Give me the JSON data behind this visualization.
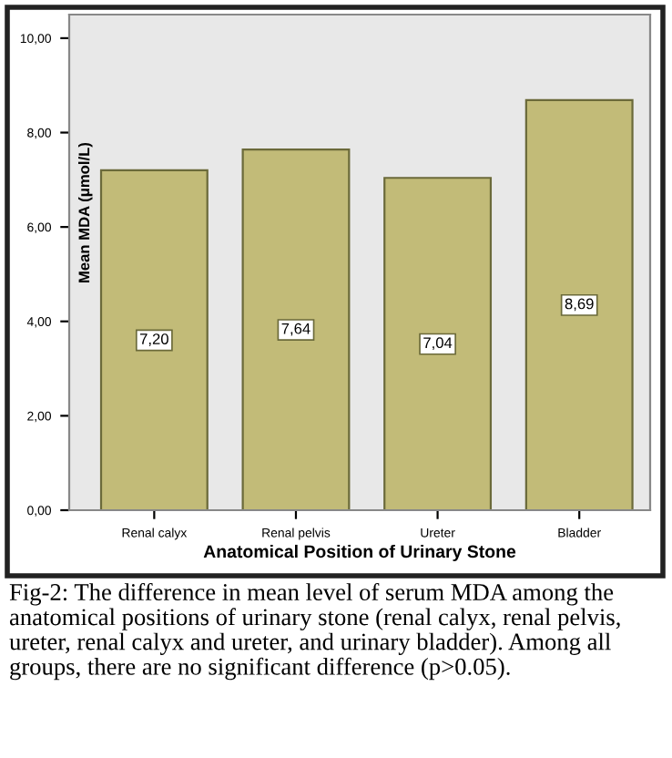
{
  "chart_data": {
    "type": "bar",
    "xlabel": "Anatomical Position of Urinary Stone",
    "ylabel": "Mean MDA (μmol/L)",
    "categories": [
      "Renal calyx",
      "Renal pelvis",
      "Ureter",
      "Bladder"
    ],
    "values": [
      7.2,
      7.64,
      7.04,
      8.69
    ],
    "value_labels": [
      "7,20",
      "7,64",
      "7,04",
      "8,69"
    ],
    "color": "#c2bb78",
    "ylim": [
      0,
      10.5
    ],
    "yticks": [
      {
        "value": 0,
        "label": "0,00"
      },
      {
        "value": 2,
        "label": "2,00"
      },
      {
        "value": 4,
        "label": "4,00"
      },
      {
        "value": 6,
        "label": "6,00"
      },
      {
        "value": 8,
        "label": "8,00"
      },
      {
        "value": 10,
        "label": "10,00"
      }
    ],
    "grid": false,
    "annotations": [
      "Fig-2: The difference in mean level of serum MDA among the anatomical positions of urinary stone (renal calyx, renal pelvis, ureter, renal calyx and ureter, and urinary bladder). Among all groups, there are no significant difference (p>0.05)."
    ]
  }
}
